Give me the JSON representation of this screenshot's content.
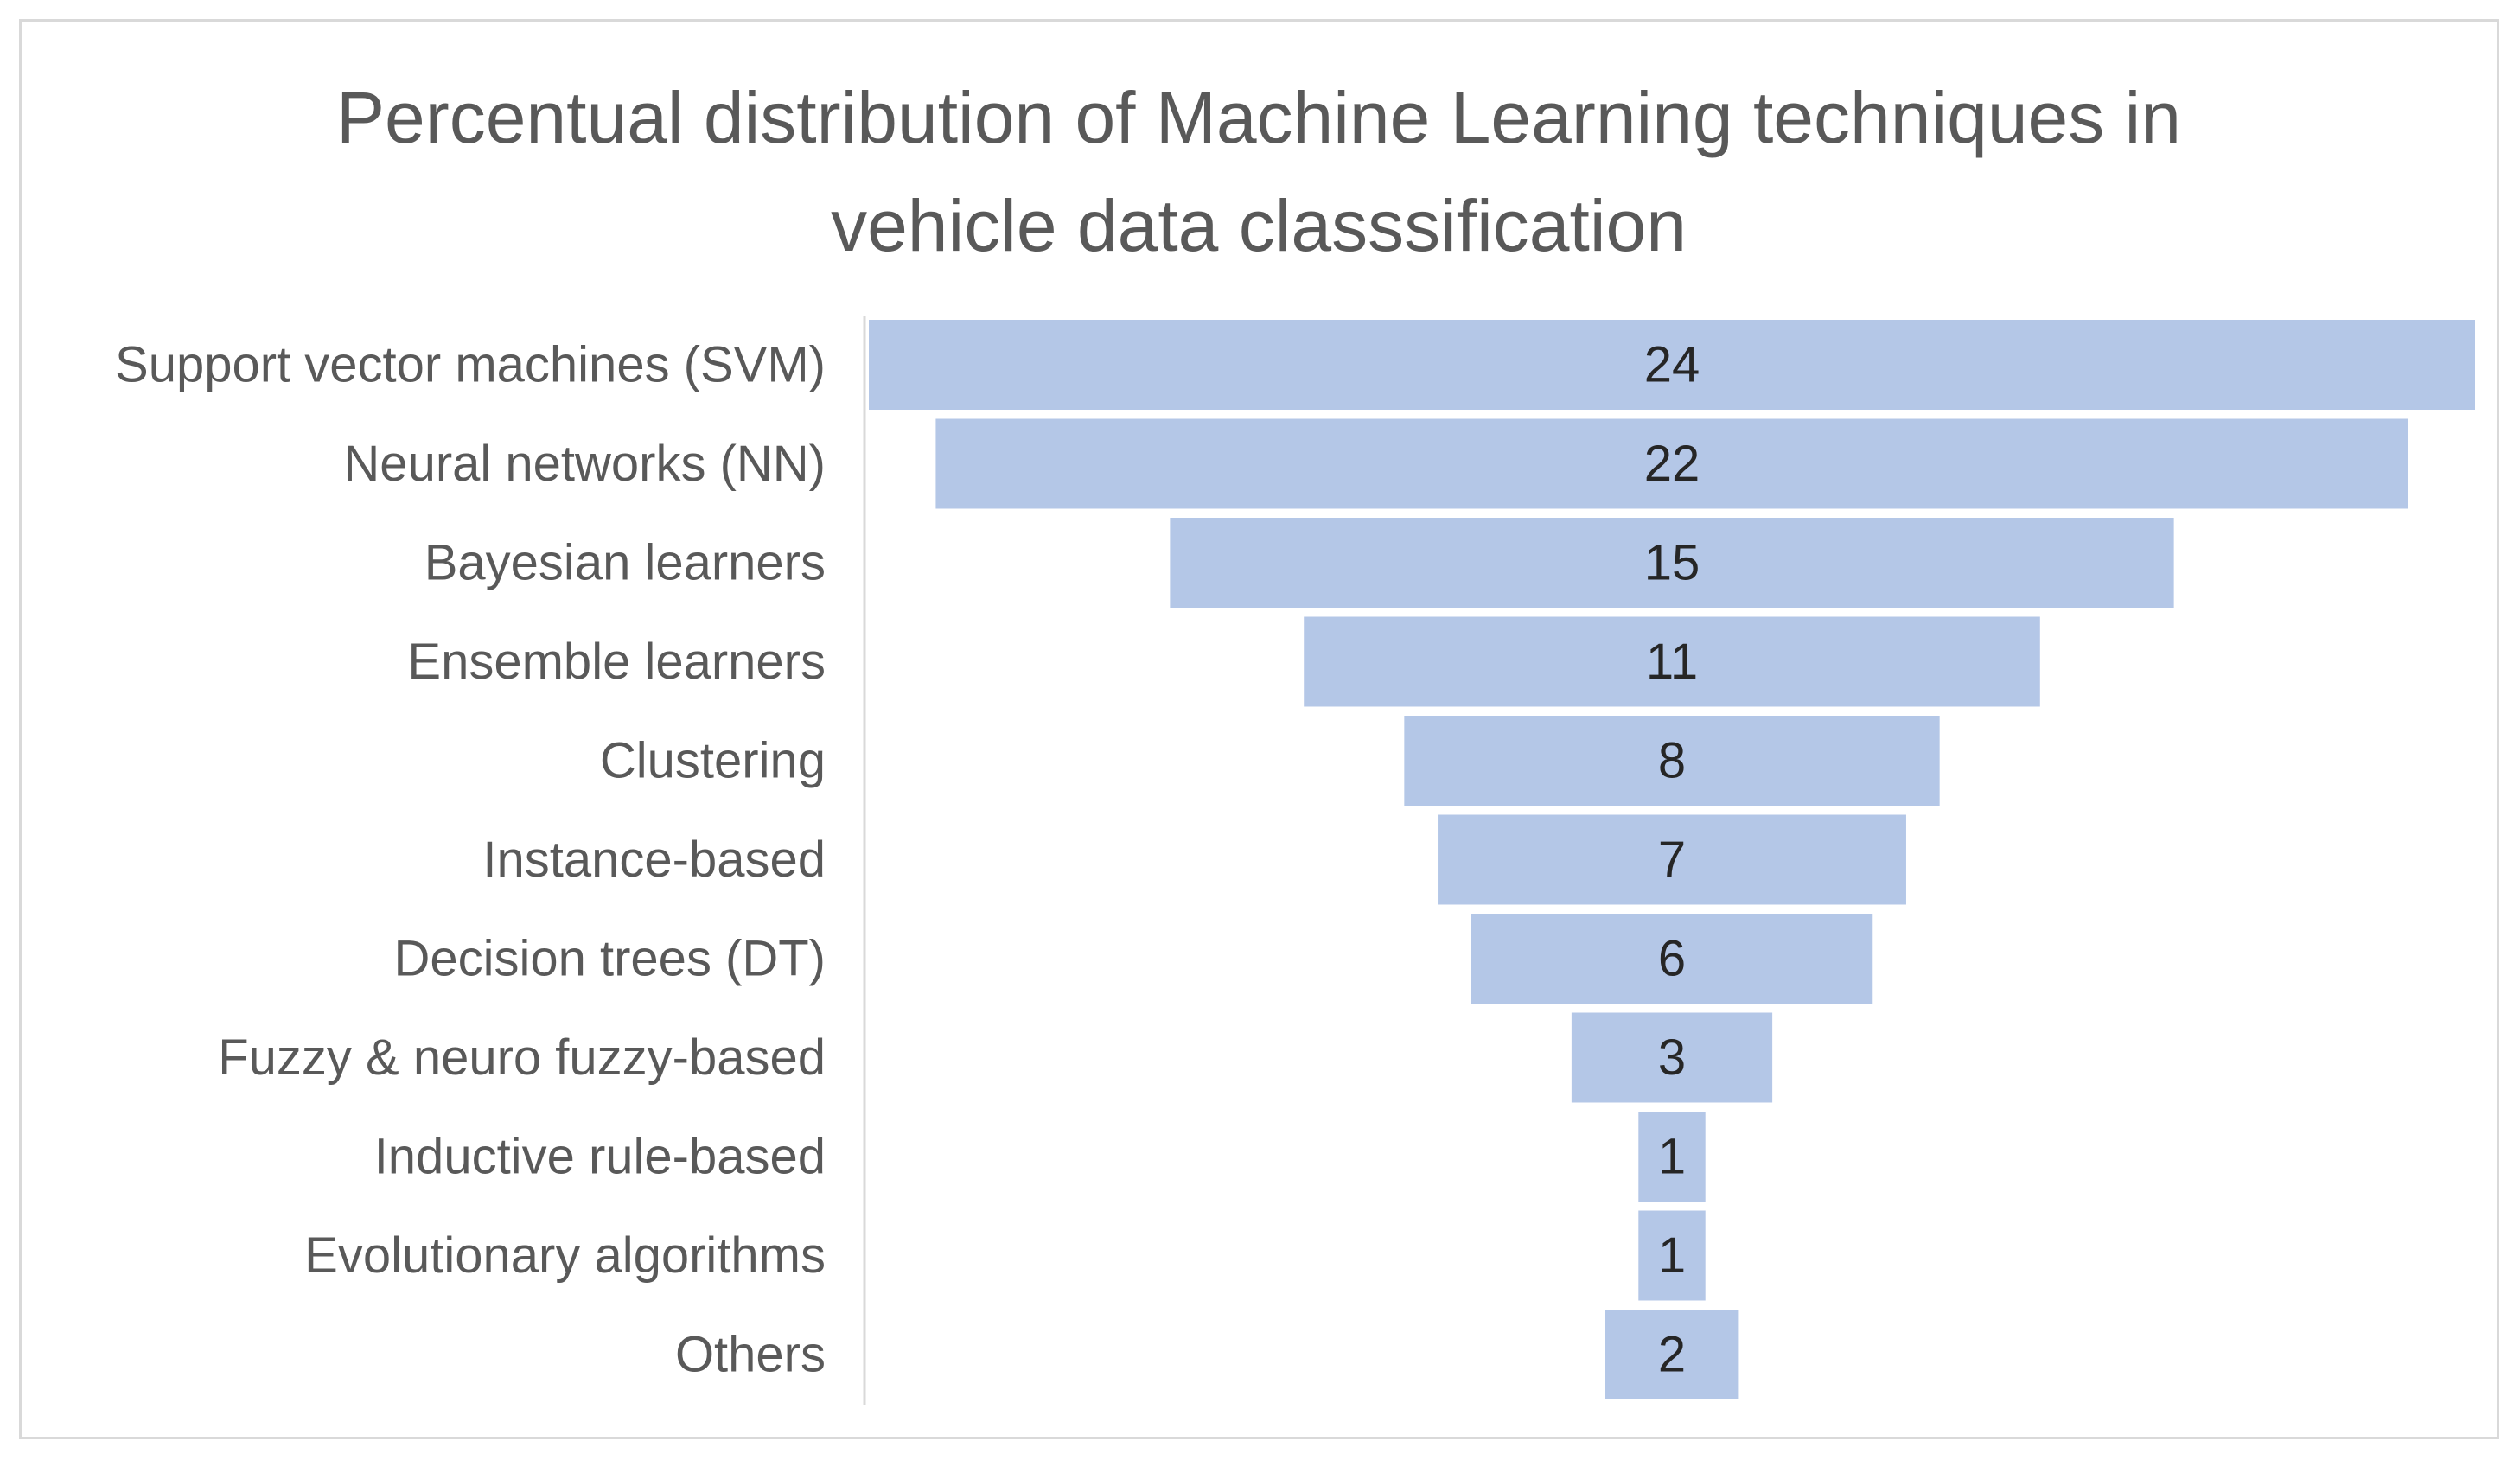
{
  "chart_data": {
    "type": "bar",
    "subtype": "funnel",
    "title": "Percentual distribution of Machine Learning techniques in vehicle data classsification",
    "title_lines": [
      "Percentual distribution of Machine Learning techniques in",
      "vehicle data classsification"
    ],
    "categories": [
      "Support vector machines (SVM)",
      "Neural networks (NN)",
      "Bayesian learners",
      "Ensemble learners",
      "Clustering",
      "Instance-based",
      "Decision trees (DT)",
      "Fuzzy & neuro fuzzy-based",
      "Inductive rule-based",
      "Evolutionary algorithms",
      "Others"
    ],
    "values": [
      24,
      22,
      15,
      11,
      8,
      7,
      6,
      3,
      1,
      1,
      2
    ],
    "xlabel": "",
    "ylabel": "",
    "legend": "none",
    "grid": false,
    "colors": {
      "bar": "#b4c7e7",
      "text": "#595959",
      "value_text": "#262626",
      "border": "#d9d9d9"
    }
  }
}
